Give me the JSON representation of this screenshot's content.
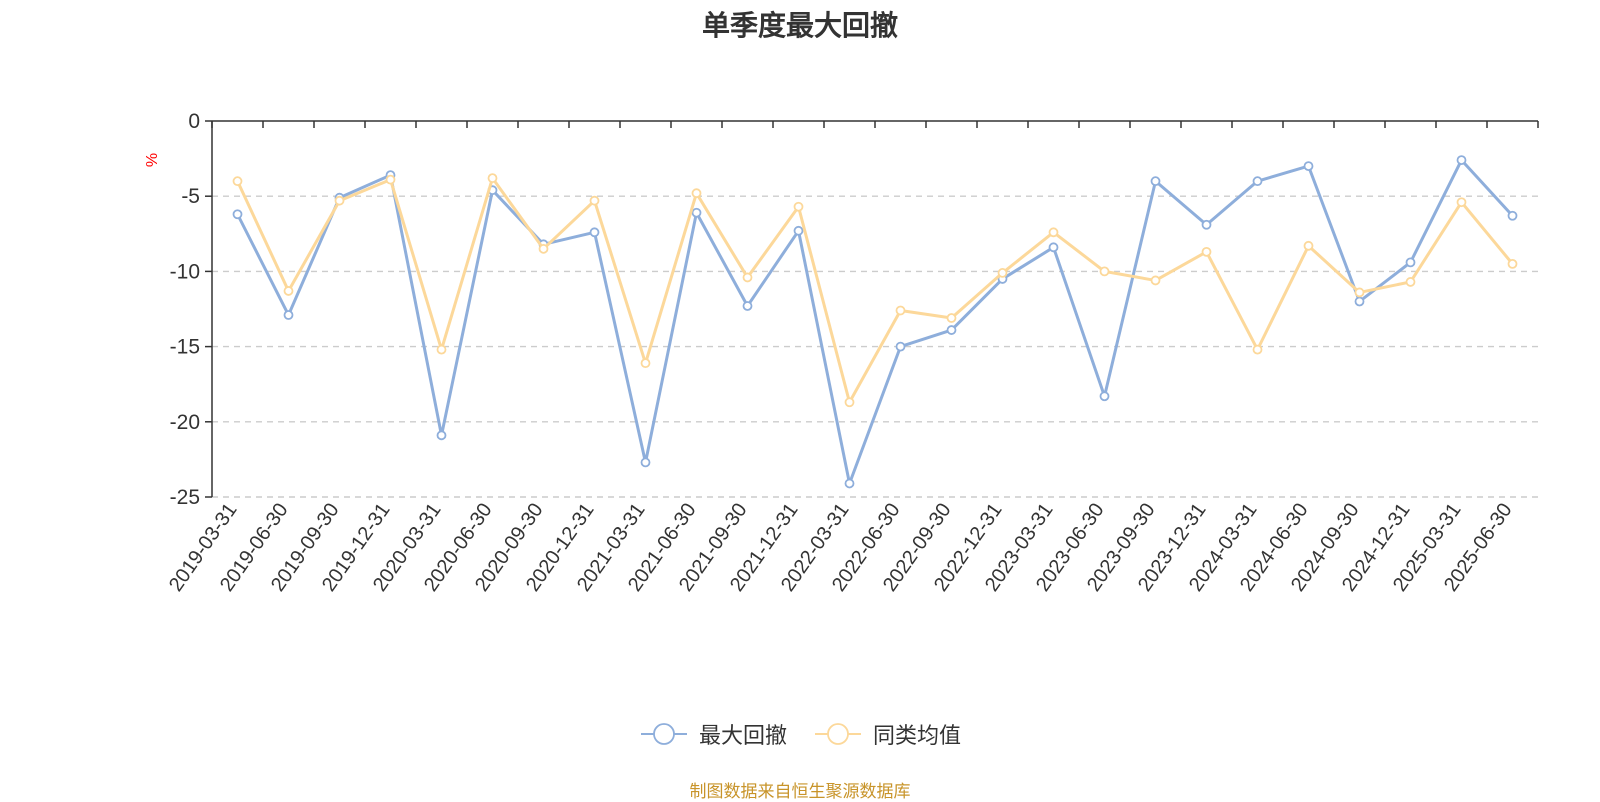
{
  "chart_data": {
    "type": "line",
    "title": "单季度最大回撤",
    "ylabel": "%",
    "ylim": [
      -25,
      0
    ],
    "yticks": [
      0,
      -5,
      -10,
      -15,
      -20,
      -25
    ],
    "grid": true,
    "legend_position": "bottom",
    "categories": [
      "2019-03-31",
      "2019-06-30",
      "2019-09-30",
      "2019-12-31",
      "2020-03-31",
      "2020-06-30",
      "2020-09-30",
      "2020-12-31",
      "2021-03-31",
      "2021-06-30",
      "2021-09-30",
      "2021-12-31",
      "2022-03-31",
      "2022-06-30",
      "2022-09-30",
      "2022-12-31",
      "2023-03-31",
      "2023-06-30",
      "2023-09-30",
      "2023-12-31",
      "2024-03-31",
      "2024-06-30",
      "2024-09-30",
      "2024-12-31",
      "2025-03-31",
      "2025-06-30"
    ],
    "series": [
      {
        "name": "最大回撤",
        "color": "#8eaedb",
        "values": [
          -6.2,
          -12.9,
          -5.1,
          -3.6,
          -20.9,
          -4.6,
          -8.2,
          -7.4,
          -22.7,
          -6.1,
          -12.3,
          -7.3,
          -24.1,
          -15.0,
          -13.9,
          -10.5,
          -8.4,
          -18.3,
          -4.0,
          -6.9,
          -4.0,
          -3.0,
          -12.0,
          -9.4,
          -2.6,
          -6.3
        ]
      },
      {
        "name": "同类均值",
        "color": "#fcd89a",
        "values": [
          -4.0,
          -11.3,
          -5.3,
          -3.9,
          -15.2,
          -3.8,
          -8.5,
          -5.3,
          -16.1,
          -4.8,
          -10.4,
          -5.7,
          -18.7,
          -12.6,
          -13.1,
          -10.1,
          -7.4,
          -10.0,
          -10.6,
          -8.7,
          -15.2,
          -8.3,
          -11.4,
          -10.7,
          -5.4,
          -9.5
        ]
      }
    ]
  },
  "source_note": "制图数据来自恒生聚源数据库",
  "colors": {
    "axis": "#333333",
    "grid": "#cccccc",
    "ylabel": "#ff0000",
    "source": "#c8942a"
  }
}
